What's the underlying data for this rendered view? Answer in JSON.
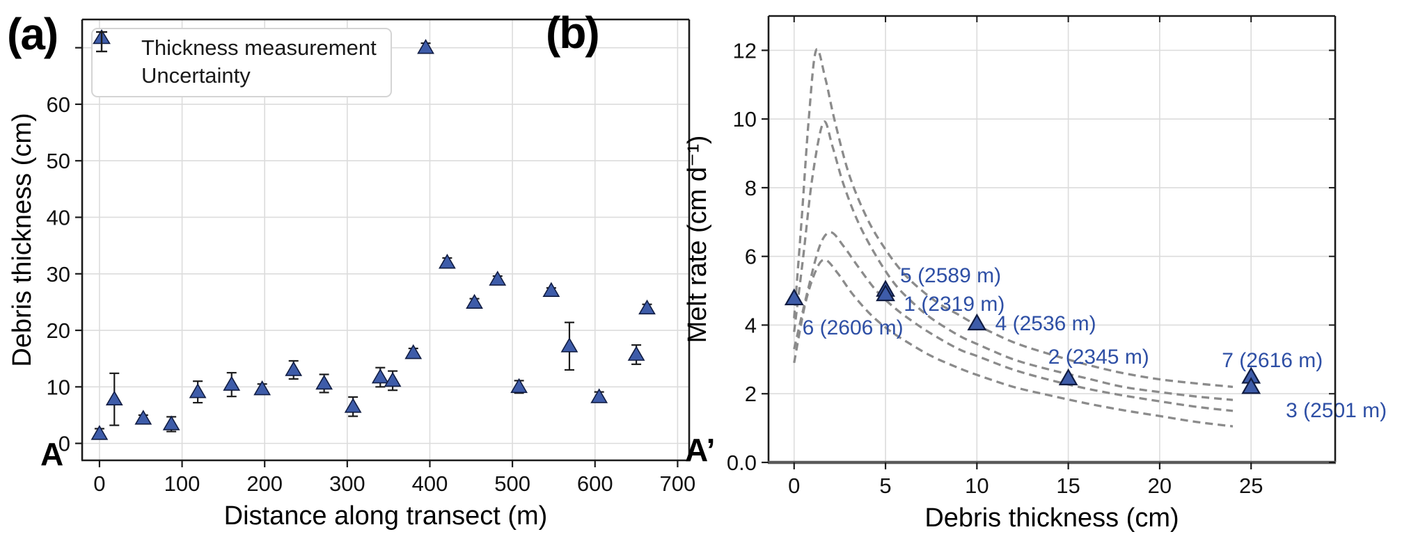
{
  "figure": {
    "panel_a_letter": "(a)",
    "panel_b_letter": "(b)",
    "transect_start_label": "A",
    "transect_end_label": "A’"
  },
  "colors": {
    "marker_fill": "#3e5ca9",
    "marker_edge": "#101c42",
    "error_bar": "#1c1c1c",
    "curve_dash": "#8b8b8b",
    "gridline": "#dcdcdc",
    "spine": "#1b1b1b",
    "spine_b_bottom": "#5a5a5a",
    "annotation_blue": "#2e4fa5",
    "tick_text": "#111111",
    "legend_border": "#d4d4d4"
  },
  "chart_data": [
    {
      "id": "a",
      "type": "scatter",
      "title": "",
      "xlabel": "Distance along transect (m)",
      "ylabel": "Debris thickness (cm)",
      "xlim": [
        -21,
        714
      ],
      "ylim": [
        -3,
        75
      ],
      "grid": true,
      "xticks": [
        0,
        100,
        200,
        300,
        400,
        500,
        600,
        700
      ],
      "yticks": [
        0,
        10,
        20,
        30,
        40,
        50,
        60
      ],
      "unlabeled_yticks": [
        70
      ],
      "legend": [
        "Thickness measurement",
        "Uncertainty"
      ],
      "legend_position": "upper left",
      "points": [
        {
          "x": 0,
          "y": 1.7,
          "err": 0.9
        },
        {
          "x": 18,
          "y": 7.8,
          "err": 4.6
        },
        {
          "x": 53,
          "y": 4.4,
          "err": 0.6
        },
        {
          "x": 87,
          "y": 3.4,
          "err": 1.3
        },
        {
          "x": 119,
          "y": 9.1,
          "err": 1.9
        },
        {
          "x": 160,
          "y": 10.4,
          "err": 2.1
        },
        {
          "x": 197,
          "y": 9.6,
          "err": 0.9
        },
        {
          "x": 235,
          "y": 13.0,
          "err": 1.6
        },
        {
          "x": 272,
          "y": 10.6,
          "err": 1.6
        },
        {
          "x": 307,
          "y": 6.5,
          "err": 1.7
        },
        {
          "x": 340,
          "y": 11.7,
          "err": 1.7
        },
        {
          "x": 355,
          "y": 11.1,
          "err": 1.7
        },
        {
          "x": 380,
          "y": 16.0,
          "err": 0.8
        },
        {
          "x": 395,
          "y": 70.0,
          "err": 0.8
        },
        {
          "x": 421,
          "y": 32.0,
          "err": 0.8
        },
        {
          "x": 454,
          "y": 24.9,
          "err": 0.7
        },
        {
          "x": 482,
          "y": 29.0,
          "err": 0.6
        },
        {
          "x": 508,
          "y": 10.0,
          "err": 1.1
        },
        {
          "x": 547,
          "y": 27.0,
          "err": 0.5
        },
        {
          "x": 569,
          "y": 17.2,
          "err": 4.2
        },
        {
          "x": 605,
          "y": 8.2,
          "err": 0.9
        },
        {
          "x": 650,
          "y": 15.7,
          "err": 1.7
        },
        {
          "x": 663,
          "y": 23.9,
          "err": 0.7
        }
      ]
    },
    {
      "id": "b",
      "type": "scatter",
      "title": "",
      "xlabel": "Debris thickness (cm)",
      "ylabel": "Melt rate (cm d⁻¹)",
      "xlim": [
        -1.4,
        29.6
      ],
      "ylim": [
        0,
        13
      ],
      "grid": true,
      "xticks": [
        0,
        5,
        10,
        15,
        20,
        25
      ],
      "yticks": [
        0,
        2,
        4,
        6,
        8,
        10,
        12
      ],
      "ytick_labels": [
        "0.0",
        "2",
        "4",
        "6",
        "8",
        "10",
        "12"
      ],
      "ticks_top_right": true,
      "points": [
        {
          "site": "6",
          "x": 0,
          "y": 4.78
        },
        {
          "site": "5",
          "x": 5,
          "y": 5.03
        },
        {
          "site": "1",
          "x": 5,
          "y": 4.9
        },
        {
          "site": "4",
          "x": 10,
          "y": 4.05
        },
        {
          "site": "2",
          "x": 15,
          "y": 2.45
        },
        {
          "site": "7",
          "x": 25,
          "y": 2.5
        },
        {
          "site": "3",
          "x": 25,
          "y": 2.2
        }
      ],
      "annotations": [
        {
          "text": "5 (2589 m)",
          "x": 5.8,
          "y": 5.45,
          "anchor": "start"
        },
        {
          "text": "1 (2319 m)",
          "x": 6.0,
          "y": 4.62,
          "anchor": "start"
        },
        {
          "text": "6 (2606 m)",
          "x": 0.45,
          "y": 3.93,
          "anchor": "start"
        },
        {
          "text": "4 (2536 m)",
          "x": 11.0,
          "y": 4.05,
          "anchor": "start"
        },
        {
          "text": "2 (2345 m)",
          "x": 13.9,
          "y": 3.08,
          "anchor": "start"
        },
        {
          "text": "7 (2616 m)",
          "x": 23.4,
          "y": 2.98,
          "anchor": "start"
        },
        {
          "text": "3 (2501 m)",
          "x": 26.9,
          "y": 1.52,
          "anchor": "start"
        }
      ],
      "curves": [
        {
          "name": "ostrem-curve-1",
          "points": [
            [
              0,
              4.2
            ],
            [
              0.4,
              7.0
            ],
            [
              0.8,
              10.0
            ],
            [
              1.2,
              12.0
            ],
            [
              1.7,
              11.2
            ],
            [
              2.2,
              10.0
            ],
            [
              3,
              8.4
            ],
            [
              4,
              7.1
            ],
            [
              5,
              6.2
            ],
            [
              6,
              5.5
            ],
            [
              7,
              5.0
            ],
            [
              8,
              4.6
            ],
            [
              9,
              4.3
            ],
            [
              10,
              4.0
            ],
            [
              12,
              3.5
            ],
            [
              14,
              3.15
            ],
            [
              16,
              2.85
            ],
            [
              18,
              2.6
            ],
            [
              20,
              2.42
            ],
            [
              22,
              2.3
            ],
            [
              24,
              2.2
            ]
          ]
        },
        {
          "name": "ostrem-curve-2",
          "points": [
            [
              0,
              3.8
            ],
            [
              0.5,
              6.0
            ],
            [
              1.0,
              8.3
            ],
            [
              1.6,
              9.9
            ],
            [
              2.1,
              9.2
            ],
            [
              2.7,
              8.1
            ],
            [
              3.5,
              7.0
            ],
            [
              4.5,
              6.0
            ],
            [
              5.5,
              5.2
            ],
            [
              6.5,
              4.65
            ],
            [
              7.5,
              4.2
            ],
            [
              9,
              3.7
            ],
            [
              10,
              3.45
            ],
            [
              12,
              3.0
            ],
            [
              14,
              2.7
            ],
            [
              16,
              2.45
            ],
            [
              18,
              2.2
            ],
            [
              20,
              2.05
            ],
            [
              22,
              1.92
            ],
            [
              24,
              1.82
            ]
          ]
        },
        {
          "name": "ostrem-curve-3",
          "points": [
            [
              0,
              3.3
            ],
            [
              0.7,
              4.9
            ],
            [
              1.4,
              6.3
            ],
            [
              2.0,
              6.7
            ],
            [
              2.7,
              6.3
            ],
            [
              3.5,
              5.7
            ],
            [
              4.5,
              5.0
            ],
            [
              5.5,
              4.5
            ],
            [
              6.5,
              4.1
            ],
            [
              7.5,
              3.75
            ],
            [
              9,
              3.3
            ],
            [
              10,
              3.1
            ],
            [
              12,
              2.7
            ],
            [
              14,
              2.4
            ],
            [
              16,
              2.15
            ],
            [
              18,
              1.95
            ],
            [
              20,
              1.78
            ],
            [
              22,
              1.62
            ],
            [
              24,
              1.5
            ]
          ]
        },
        {
          "name": "ostrem-curve-4",
          "points": [
            [
              0,
              2.9
            ],
            [
              0.6,
              4.6
            ],
            [
              1.2,
              5.6
            ],
            [
              1.7,
              5.9
            ],
            [
              2.4,
              5.5
            ],
            [
              3.2,
              4.9
            ],
            [
              4.2,
              4.3
            ],
            [
              5.2,
              3.85
            ],
            [
              6.2,
              3.5
            ],
            [
              7.5,
              3.1
            ],
            [
              9,
              2.75
            ],
            [
              10,
              2.55
            ],
            [
              12,
              2.2
            ],
            [
              14,
              1.95
            ],
            [
              16,
              1.72
            ],
            [
              18,
              1.52
            ],
            [
              20,
              1.35
            ],
            [
              22,
              1.18
            ],
            [
              24,
              1.05
            ]
          ]
        }
      ]
    }
  ]
}
